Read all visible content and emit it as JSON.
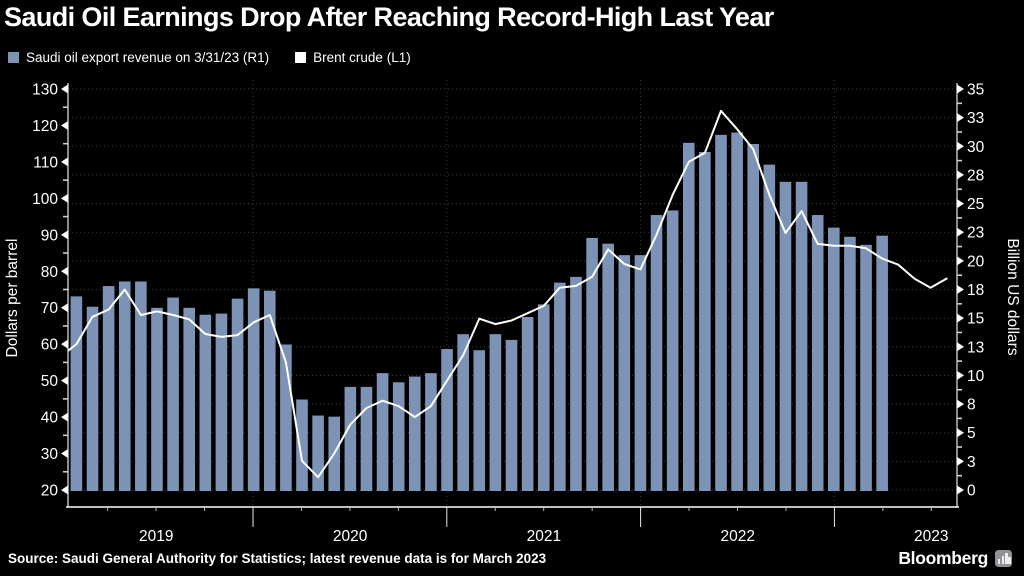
{
  "title": "Saudi Oil Earnings Drop After Reaching Record-High Last Year",
  "legend": [
    {
      "label": "Saudi oil export revenue on 3/31/23 (R1)",
      "color": "#7d93b5"
    },
    {
      "label": "Brent crude (L1)",
      "color": "#ffffff"
    }
  ],
  "source": "Source: Saudi General Authority for Statistics; latest revenue data is for March 2023",
  "branding": {
    "name": "Bloomberg",
    "icon": "bar-chart-icon"
  },
  "colors": {
    "background": "#000000",
    "bar": "#7d93b5",
    "line": "#ffffff",
    "grid": "#3c3c3c",
    "axis": "#e8e8e8",
    "text": "#ffffff"
  },
  "chart_data": {
    "type": "bar+line dual-axis",
    "title": "Saudi Oil Earnings Drop After Reaching Record-High Last Year",
    "x_axis": {
      "year_labels": [
        "2019",
        "2020",
        "2021",
        "2022",
        "2023"
      ],
      "months_span": "Jan 2019 - Mar 2023 (bars), line extends to Jul 2023"
    },
    "left_axis": {
      "title": "Dollars per barrel",
      "tick_values": [
        20,
        30,
        40,
        50,
        60,
        70,
        80,
        90,
        100,
        110,
        120,
        130
      ],
      "minor_step": 5,
      "range": [
        20,
        130
      ]
    },
    "right_axis": {
      "title": "Billion US dollars",
      "tick_values": [
        0,
        2.5,
        5,
        7.5,
        10,
        12.5,
        15,
        17.5,
        20,
        22.5,
        25,
        27.5,
        30,
        32.5,
        35
      ],
      "tick_labels": [
        "0",
        "3",
        "5",
        "8",
        "10",
        "13",
        "15",
        "18",
        "20",
        "23",
        "25",
        "28",
        "30",
        "33",
        "35"
      ],
      "range": [
        0,
        35
      ]
    },
    "series": {
      "revenue": {
        "name": "Saudi oil export revenue on 3/31/23 (R1)",
        "axis": "right",
        "unit": "billion US dollars",
        "start_month": "2019-01",
        "values": [
          16.9,
          16.0,
          17.8,
          18.2,
          18.2,
          15.9,
          16.8,
          15.9,
          15.3,
          15.4,
          16.7,
          17.6,
          17.4,
          12.7,
          7.9,
          6.5,
          6.4,
          9.0,
          9.0,
          10.2,
          9.4,
          9.9,
          10.2,
          12.3,
          13.6,
          12.2,
          13.6,
          13.1,
          15.1,
          16.2,
          18.1,
          18.6,
          22.0,
          21.5,
          20.5,
          20.5,
          24.0,
          24.4,
          30.3,
          29.5,
          31.0,
          31.2,
          30.2,
          28.4,
          26.9,
          26.9,
          24.0,
          22.9,
          22.1,
          21.4,
          22.2
        ]
      },
      "brent": {
        "name": "Brent crude (L1)",
        "axis": "left",
        "unit": "dollars per barrel",
        "start_month": "2018-12",
        "values": [
          56.5,
          60,
          67.5,
          69.5,
          75,
          68,
          69,
          68,
          66.8,
          62.8,
          62,
          62.5,
          66,
          68,
          55,
          28,
          23.5,
          30,
          38,
          42.5,
          44.5,
          43,
          40,
          43,
          50,
          57,
          67,
          65.5,
          66.5,
          68.5,
          70.5,
          75.5,
          76,
          78.5,
          86,
          82,
          80.5,
          90,
          101,
          110,
          112.5,
          124,
          119,
          113.5,
          101,
          90.5,
          96.5,
          87.5,
          87,
          87,
          86.3,
          83.5,
          81.8,
          78,
          75.5,
          78
        ]
      }
    },
    "grid": "horizontal dotted lines at every right-axis tick; vertical dotted lines at year boundaries",
    "legend_position": "top-left"
  }
}
